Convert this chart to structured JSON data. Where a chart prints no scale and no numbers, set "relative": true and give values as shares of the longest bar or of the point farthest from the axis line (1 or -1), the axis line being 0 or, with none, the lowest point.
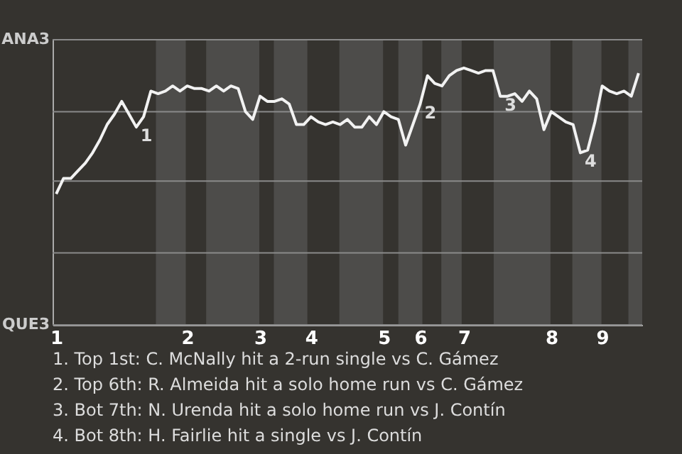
{
  "chart_data": {
    "type": "line",
    "relative": true,
    "categories": [
      "1",
      null,
      null,
      null,
      null,
      null,
      null,
      null,
      null,
      null,
      null,
      null,
      null,
      null,
      null,
      null,
      null,
      null,
      "2",
      null,
      null,
      null,
      null,
      null,
      null,
      null,
      null,
      null,
      "3",
      null,
      null,
      null,
      null,
      null,
      null,
      "4",
      null,
      null,
      null,
      null,
      null,
      null,
      null,
      null,
      null,
      "5",
      null,
      null,
      null,
      null,
      "6",
      null,
      null,
      null,
      null,
      null,
      "7",
      null,
      null,
      null,
      null,
      null,
      null,
      null,
      null,
      null,
      null,
      null,
      "8",
      null,
      null,
      null,
      null,
      null,
      null,
      "9",
      null,
      null,
      null,
      null,
      null
    ],
    "series": [
      {
        "color": "#f2f2f2",
        "values": [
          0.51,
          0.57,
          0.57,
          0.6,
          0.63,
          0.67,
          0.72,
          0.78,
          0.82,
          0.87,
          0.82,
          0.77,
          0.81,
          0.91,
          0.9,
          0.91,
          0.93,
          0.91,
          0.93,
          0.92,
          0.92,
          0.91,
          0.93,
          0.91,
          0.93,
          0.92,
          0.83,
          0.8,
          0.89,
          0.87,
          0.87,
          0.88,
          0.86,
          0.78,
          0.78,
          0.81,
          0.79,
          0.78,
          0.79,
          0.78,
          0.8,
          0.77,
          0.77,
          0.81,
          0.78,
          0.83,
          0.81,
          0.8,
          0.7,
          0.78,
          0.86,
          0.97,
          0.94,
          0.93,
          0.97,
          0.99,
          1,
          0.99,
          0.98,
          0.99,
          0.99,
          0.89,
          0.89,
          0.9,
          0.87,
          0.91,
          0.88,
          0.76,
          0.83,
          0.81,
          0.79,
          0.78,
          0.67,
          0.68,
          0.79,
          0.93,
          0.91,
          0.9,
          0.91,
          0.89,
          0.98
        ]
      }
    ],
    "ref_lines": [
      {
        "axis": "y",
        "value": 0,
        "label": "QUE3",
        "color": "#8a8a8a"
      },
      {
        "axis": "y",
        "value": 0.28,
        "color": "#8a8a8a"
      },
      {
        "axis": "y",
        "value": 0.56,
        "color": "#8a8a8a"
      },
      {
        "axis": "y",
        "value": 0.83,
        "color": "#8a8a8a"
      },
      {
        "axis": "y",
        "value": 1.11,
        "label": "ANA3",
        "color": "#8a8a8a"
      }
    ],
    "annotations": [
      "1",
      "2",
      "3",
      "4",
      "1. Top 1st: C. McNally hit a 2-run single vs C. Gámez",
      "2. Top 6th: R. Almeida hit a solo home run vs C. Gámez",
      "3. Bot 7th: N. Urenda hit a solo home run vs J. Contín",
      "4. Bot 8th: H. Fairlie hit a single vs J. Contín"
    ]
  }
}
